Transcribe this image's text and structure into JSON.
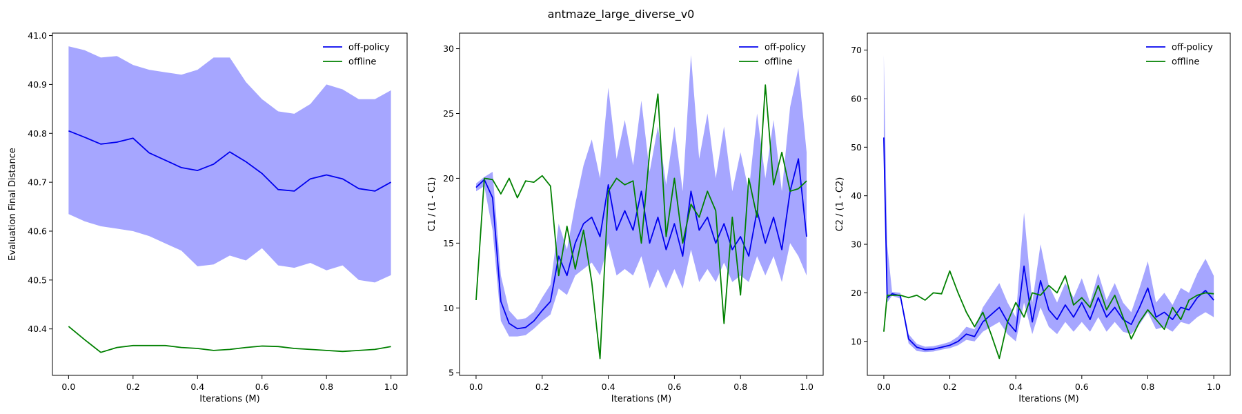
{
  "figure": {
    "title": "antmaze_large_diverse_v0",
    "colors": {
      "off_policy": "#0000ee",
      "offline": "#008000",
      "band": "#a6a6ff"
    }
  },
  "chart_data": [
    {
      "type": "line",
      "xlabel": "Iterations (M)",
      "ylabel": "Evaluation Final Distance",
      "xlim": [
        -0.05,
        1.05
      ],
      "ylim": [
        40.305,
        41.005
      ],
      "xticks": [
        "0.0",
        "0.2",
        "0.4",
        "0.6",
        "0.8",
        "1.0"
      ],
      "yticks": [
        "40.4",
        "40.5",
        "40.6",
        "40.7",
        "40.8",
        "40.9",
        "41.0"
      ],
      "legend": "top-right",
      "x": [
        0.0,
        0.05,
        0.1,
        0.15,
        0.2,
        0.25,
        0.3,
        0.35,
        0.4,
        0.45,
        0.5,
        0.55,
        0.6,
        0.65,
        0.7,
        0.75,
        0.8,
        0.85,
        0.9,
        0.95,
        1.0
      ],
      "series": [
        {
          "name": "off-policy",
          "values": [
            40.805,
            40.792,
            40.778,
            40.782,
            40.79,
            40.76,
            40.745,
            40.73,
            40.724,
            40.737,
            40.762,
            40.742,
            40.718,
            40.685,
            40.682,
            40.707,
            40.715,
            40.707,
            40.687,
            40.682,
            40.7
          ],
          "lower": [
            40.635,
            40.62,
            40.61,
            40.605,
            40.6,
            40.59,
            40.575,
            40.56,
            40.528,
            40.532,
            40.55,
            40.54,
            40.565,
            40.53,
            40.525,
            40.535,
            40.52,
            40.53,
            40.5,
            40.495,
            40.51
          ],
          "upper": [
            40.978,
            40.97,
            40.955,
            40.958,
            40.94,
            40.93,
            40.925,
            40.92,
            40.93,
            40.955,
            40.955,
            40.905,
            40.87,
            40.845,
            40.84,
            40.86,
            40.9,
            40.89,
            40.87,
            40.87,
            40.888
          ]
        },
        {
          "name": "offline",
          "values": [
            40.405,
            40.378,
            40.352,
            40.362,
            40.366,
            40.366,
            40.366,
            40.362,
            40.36,
            40.356,
            40.358,
            40.362,
            40.365,
            40.364,
            40.36,
            40.358,
            40.356,
            40.354,
            40.356,
            40.358,
            40.364
          ]
        }
      ]
    },
    {
      "type": "line",
      "xlabel": "Iterations (M)",
      "ylabel": "C1 / (1 - C1)",
      "xlim": [
        -0.05,
        1.05
      ],
      "ylim": [
        4.8,
        31.2
      ],
      "xticks": [
        "0.0",
        "0.2",
        "0.4",
        "0.6",
        "0.8",
        "1.0"
      ],
      "yticks": [
        "5",
        "10",
        "15",
        "20",
        "25",
        "30"
      ],
      "legend": "top-right",
      "x": [
        0.0,
        0.025,
        0.05,
        0.075,
        0.1,
        0.125,
        0.15,
        0.175,
        0.2,
        0.225,
        0.25,
        0.275,
        0.3,
        0.325,
        0.35,
        0.375,
        0.4,
        0.425,
        0.45,
        0.475,
        0.5,
        0.525,
        0.55,
        0.575,
        0.6,
        0.625,
        0.65,
        0.675,
        0.7,
        0.725,
        0.75,
        0.775,
        0.8,
        0.825,
        0.85,
        0.875,
        0.9,
        0.925,
        0.95,
        0.975,
        1.0
      ],
      "series": [
        {
          "name": "off-policy",
          "values": [
            19.3,
            19.9,
            18.5,
            10.5,
            8.8,
            8.4,
            8.5,
            9.0,
            9.8,
            10.5,
            14.0,
            12.5,
            15.0,
            16.5,
            17.0,
            15.5,
            19.5,
            16.0,
            17.5,
            16.0,
            19.0,
            15.0,
            17.0,
            14.5,
            16.5,
            14.0,
            19.0,
            16.0,
            17.0,
            15.0,
            16.5,
            14.5,
            15.5,
            14.0,
            17.5,
            15.0,
            17.0,
            14.5,
            19.0,
            21.5,
            15.5
          ],
          "lower": [
            19.0,
            19.4,
            16.0,
            9.0,
            7.8,
            7.8,
            7.9,
            8.4,
            9.0,
            9.5,
            11.5,
            11.0,
            12.5,
            13.0,
            13.5,
            12.5,
            15.0,
            12.5,
            13.0,
            12.5,
            14.0,
            11.5,
            13.0,
            11.5,
            13.0,
            11.5,
            14.5,
            12.0,
            13.0,
            12.0,
            13.5,
            12.0,
            12.5,
            12.0,
            14.0,
            12.5,
            14.0,
            12.0,
            15.0,
            14.0,
            12.5
          ],
          "upper": [
            19.6,
            20.1,
            20.5,
            12.5,
            9.8,
            9.1,
            9.2,
            9.7,
            10.8,
            11.8,
            16.5,
            14.5,
            18.0,
            21.0,
            23.0,
            20.0,
            27.0,
            21.5,
            24.5,
            21.0,
            26.0,
            20.5,
            24.0,
            19.5,
            24.0,
            19.0,
            29.5,
            21.5,
            25.0,
            20.0,
            24.0,
            19.0,
            22.0,
            19.0,
            25.0,
            20.0,
            24.5,
            19.0,
            25.5,
            28.5,
            22.0
          ]
        },
        {
          "name": "offline",
          "values": [
            10.6,
            20.0,
            19.9,
            18.8,
            20.0,
            18.5,
            19.8,
            19.7,
            20.2,
            19.4,
            12.5,
            16.3,
            13.0,
            16.0,
            12.0,
            6.1,
            19.0,
            20.0,
            19.5,
            19.8,
            15.0,
            22.0,
            26.5,
            15.5,
            20.0,
            15.0,
            18.0,
            17.0,
            19.0,
            17.5,
            8.8,
            17.0,
            11.0,
            20.0,
            17.0,
            27.2,
            19.5,
            22.0,
            19.0,
            19.2,
            19.8
          ]
        }
      ]
    },
    {
      "type": "line",
      "xlabel": "Iterations (M)",
      "ylabel": "C2 / (1 - C2)",
      "xlim": [
        -0.05,
        1.05
      ],
      "ylim": [
        3.0,
        73.5
      ],
      "xticks": [
        "0.0",
        "0.2",
        "0.4",
        "0.6",
        "0.8",
        "1.0"
      ],
      "yticks": [
        "10",
        "20",
        "30",
        "40",
        "50",
        "60",
        "70"
      ],
      "legend": "top-right",
      "x": [
        0.0,
        0.01,
        0.025,
        0.05,
        0.075,
        0.1,
        0.125,
        0.15,
        0.175,
        0.2,
        0.225,
        0.25,
        0.275,
        0.3,
        0.325,
        0.35,
        0.375,
        0.4,
        0.425,
        0.45,
        0.475,
        0.5,
        0.525,
        0.55,
        0.575,
        0.6,
        0.625,
        0.65,
        0.675,
        0.7,
        0.725,
        0.75,
        0.775,
        0.8,
        0.825,
        0.85,
        0.875,
        0.9,
        0.925,
        0.95,
        0.975,
        1.0
      ],
      "series": [
        {
          "name": "off-policy",
          "values": [
            52.0,
            19.0,
            19.8,
            19.4,
            10.5,
            8.8,
            8.3,
            8.4,
            8.8,
            9.2,
            10.0,
            11.5,
            11.0,
            14.0,
            15.5,
            17.0,
            14.0,
            12.0,
            25.5,
            14.0,
            22.5,
            16.5,
            14.5,
            17.5,
            15.0,
            18.0,
            14.5,
            19.0,
            15.0,
            17.0,
            14.5,
            13.5,
            17.0,
            21.0,
            15.0,
            16.0,
            14.5,
            17.0,
            16.5,
            19.0,
            20.5,
            18.5
          ],
          "lower": [
            50.0,
            18.0,
            19.4,
            18.8,
            9.6,
            8.0,
            7.8,
            7.9,
            8.3,
            8.6,
            9.2,
            10.3,
            10.0,
            12.0,
            13.0,
            14.0,
            11.5,
            10.0,
            18.0,
            11.5,
            17.0,
            13.0,
            11.5,
            14.0,
            12.0,
            14.0,
            12.0,
            15.0,
            12.0,
            14.0,
            12.0,
            11.5,
            13.5,
            16.0,
            12.5,
            13.0,
            12.0,
            14.0,
            13.5,
            15.0,
            16.0,
            15.0
          ],
          "upper": [
            69.0,
            30.0,
            20.2,
            20.0,
            11.5,
            9.5,
            8.9,
            9.0,
            9.4,
            9.9,
            11.0,
            13.0,
            12.5,
            17.0,
            19.5,
            22.0,
            18.0,
            15.0,
            36.5,
            18.0,
            30.0,
            21.5,
            18.0,
            22.0,
            19.0,
            23.0,
            18.0,
            24.0,
            18.5,
            22.0,
            18.0,
            16.0,
            21.0,
            26.5,
            18.0,
            20.0,
            17.5,
            21.0,
            20.0,
            24.0,
            27.0,
            23.5
          ]
        },
        {
          "name": "offline",
          "values": [
            12.0,
            19.5,
            19.5,
            19.5,
            19.0,
            19.5,
            18.5,
            20.0,
            19.8,
            24.5,
            20.0,
            16.0,
            13.0,
            16.0,
            11.5,
            6.5,
            14.0,
            18.0,
            15.0,
            20.0,
            19.5,
            21.5,
            20.0,
            23.5,
            17.5,
            19.0,
            17.0,
            21.5,
            16.5,
            19.5,
            15.0,
            10.5,
            14.0,
            16.5,
            14.5,
            12.5,
            17.0,
            14.5,
            18.5,
            19.5,
            20.0,
            19.8
          ]
        }
      ]
    }
  ]
}
